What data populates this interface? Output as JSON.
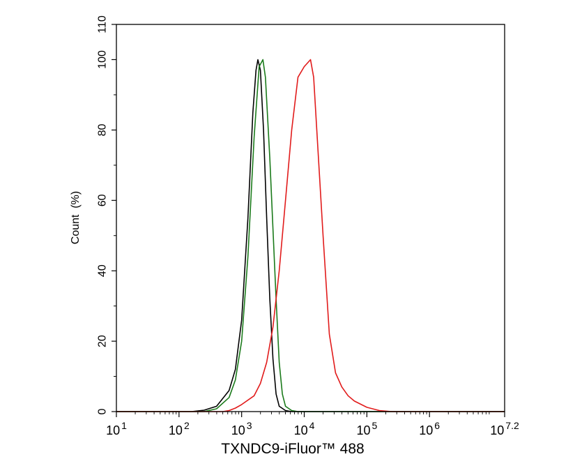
{
  "chart_data": {
    "type": "line",
    "title": "",
    "xlabel": "TXNDC9-iFluor™ 488",
    "ylabel": "Count  (%)",
    "x_scale": "log10",
    "xlim": [
      1,
      7.2
    ],
    "ylim": [
      0,
      110
    ],
    "x_ticks": [
      {
        "value": 1,
        "base": "10",
        "exp": "1"
      },
      {
        "value": 2,
        "base": "10",
        "exp": "2"
      },
      {
        "value": 3,
        "base": "10",
        "exp": "3"
      },
      {
        "value": 4,
        "base": "10",
        "exp": "4"
      },
      {
        "value": 5,
        "base": "10",
        "exp": "5"
      },
      {
        "value": 6,
        "base": "10",
        "exp": "6"
      },
      {
        "value": 7.2,
        "base": "10",
        "exp": "7.2"
      }
    ],
    "y_ticks": [
      0,
      20,
      40,
      60,
      80,
      100,
      110
    ],
    "grid": false,
    "legend": "none",
    "series": [
      {
        "color": "#000000",
        "points": [
          [
            1.0,
            0
          ],
          [
            2.2,
            0
          ],
          [
            2.4,
            0.4
          ],
          [
            2.6,
            1.5
          ],
          [
            2.8,
            6
          ],
          [
            2.9,
            12
          ],
          [
            3.0,
            26
          ],
          [
            3.1,
            55
          ],
          [
            3.18,
            85
          ],
          [
            3.23,
            97
          ],
          [
            3.26,
            100
          ],
          [
            3.3,
            97
          ],
          [
            3.35,
            80
          ],
          [
            3.4,
            55
          ],
          [
            3.45,
            32
          ],
          [
            3.5,
            15
          ],
          [
            3.55,
            5
          ],
          [
            3.6,
            1.5
          ],
          [
            3.7,
            0.3
          ],
          [
            3.8,
            0
          ],
          [
            7.2,
            0
          ]
        ]
      },
      {
        "color": "#1a7a1a",
        "points": [
          [
            1.0,
            0
          ],
          [
            2.4,
            0
          ],
          [
            2.6,
            0.8
          ],
          [
            2.8,
            4
          ],
          [
            2.9,
            9
          ],
          [
            3.0,
            20
          ],
          [
            3.1,
            44
          ],
          [
            3.2,
            78
          ],
          [
            3.28,
            98
          ],
          [
            3.34,
            100
          ],
          [
            3.38,
            95
          ],
          [
            3.45,
            72
          ],
          [
            3.5,
            52
          ],
          [
            3.55,
            32
          ],
          [
            3.6,
            14
          ],
          [
            3.65,
            5
          ],
          [
            3.7,
            1.5
          ],
          [
            3.8,
            0.3
          ],
          [
            3.9,
            0
          ],
          [
            7.2,
            0
          ]
        ]
      },
      {
        "color": "#e11b1b",
        "points": [
          [
            1.0,
            0
          ],
          [
            2.7,
            0
          ],
          [
            2.8,
            0.3
          ],
          [
            2.9,
            1
          ],
          [
            3.0,
            2
          ],
          [
            3.2,
            4.5
          ],
          [
            3.3,
            8
          ],
          [
            3.4,
            14
          ],
          [
            3.5,
            24
          ],
          [
            3.6,
            40
          ],
          [
            3.7,
            60
          ],
          [
            3.8,
            80
          ],
          [
            3.9,
            95
          ],
          [
            4.0,
            98
          ],
          [
            4.1,
            100
          ],
          [
            4.15,
            95
          ],
          [
            4.2,
            80
          ],
          [
            4.3,
            50
          ],
          [
            4.4,
            22
          ],
          [
            4.5,
            11
          ],
          [
            4.6,
            7
          ],
          [
            4.7,
            4.5
          ],
          [
            4.8,
            3
          ],
          [
            5.0,
            1.2
          ],
          [
            5.2,
            0.3
          ],
          [
            5.4,
            0
          ],
          [
            7.2,
            0
          ]
        ]
      }
    ]
  }
}
